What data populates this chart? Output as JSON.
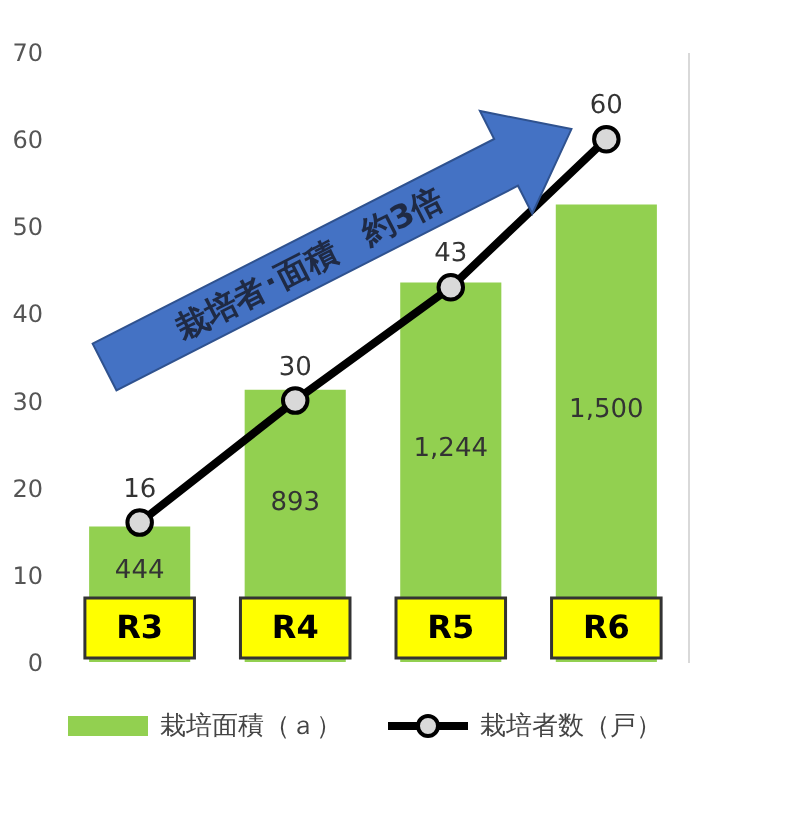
{
  "chart_data": {
    "type": "bar",
    "categories": [
      "R3",
      "R4",
      "R5",
      "R6"
    ],
    "ylim": [
      0,
      70
    ],
    "yticks": [
      0,
      10,
      20,
      30,
      40,
      50,
      60,
      70
    ],
    "y2lim": [
      0,
      2000
    ],
    "grid": false,
    "legend": "bottom",
    "annotations": [
      "栽培者･面積　約3倍"
    ],
    "series": [
      {
        "name": "栽培面積（ａ）",
        "axis": "y2",
        "color": "#92d050",
        "values": [
          444,
          893,
          1244,
          1500
        ],
        "value_labels": [
          "444",
          "893",
          "1,244",
          "1,500"
        ]
      },
      {
        "name": "栽培者数（戸）",
        "type": "line",
        "color": "#000000",
        "marker": "circle",
        "values": [
          16,
          30,
          43,
          60
        ],
        "value_labels": [
          "16",
          "30",
          "43",
          "60"
        ]
      }
    ]
  }
}
